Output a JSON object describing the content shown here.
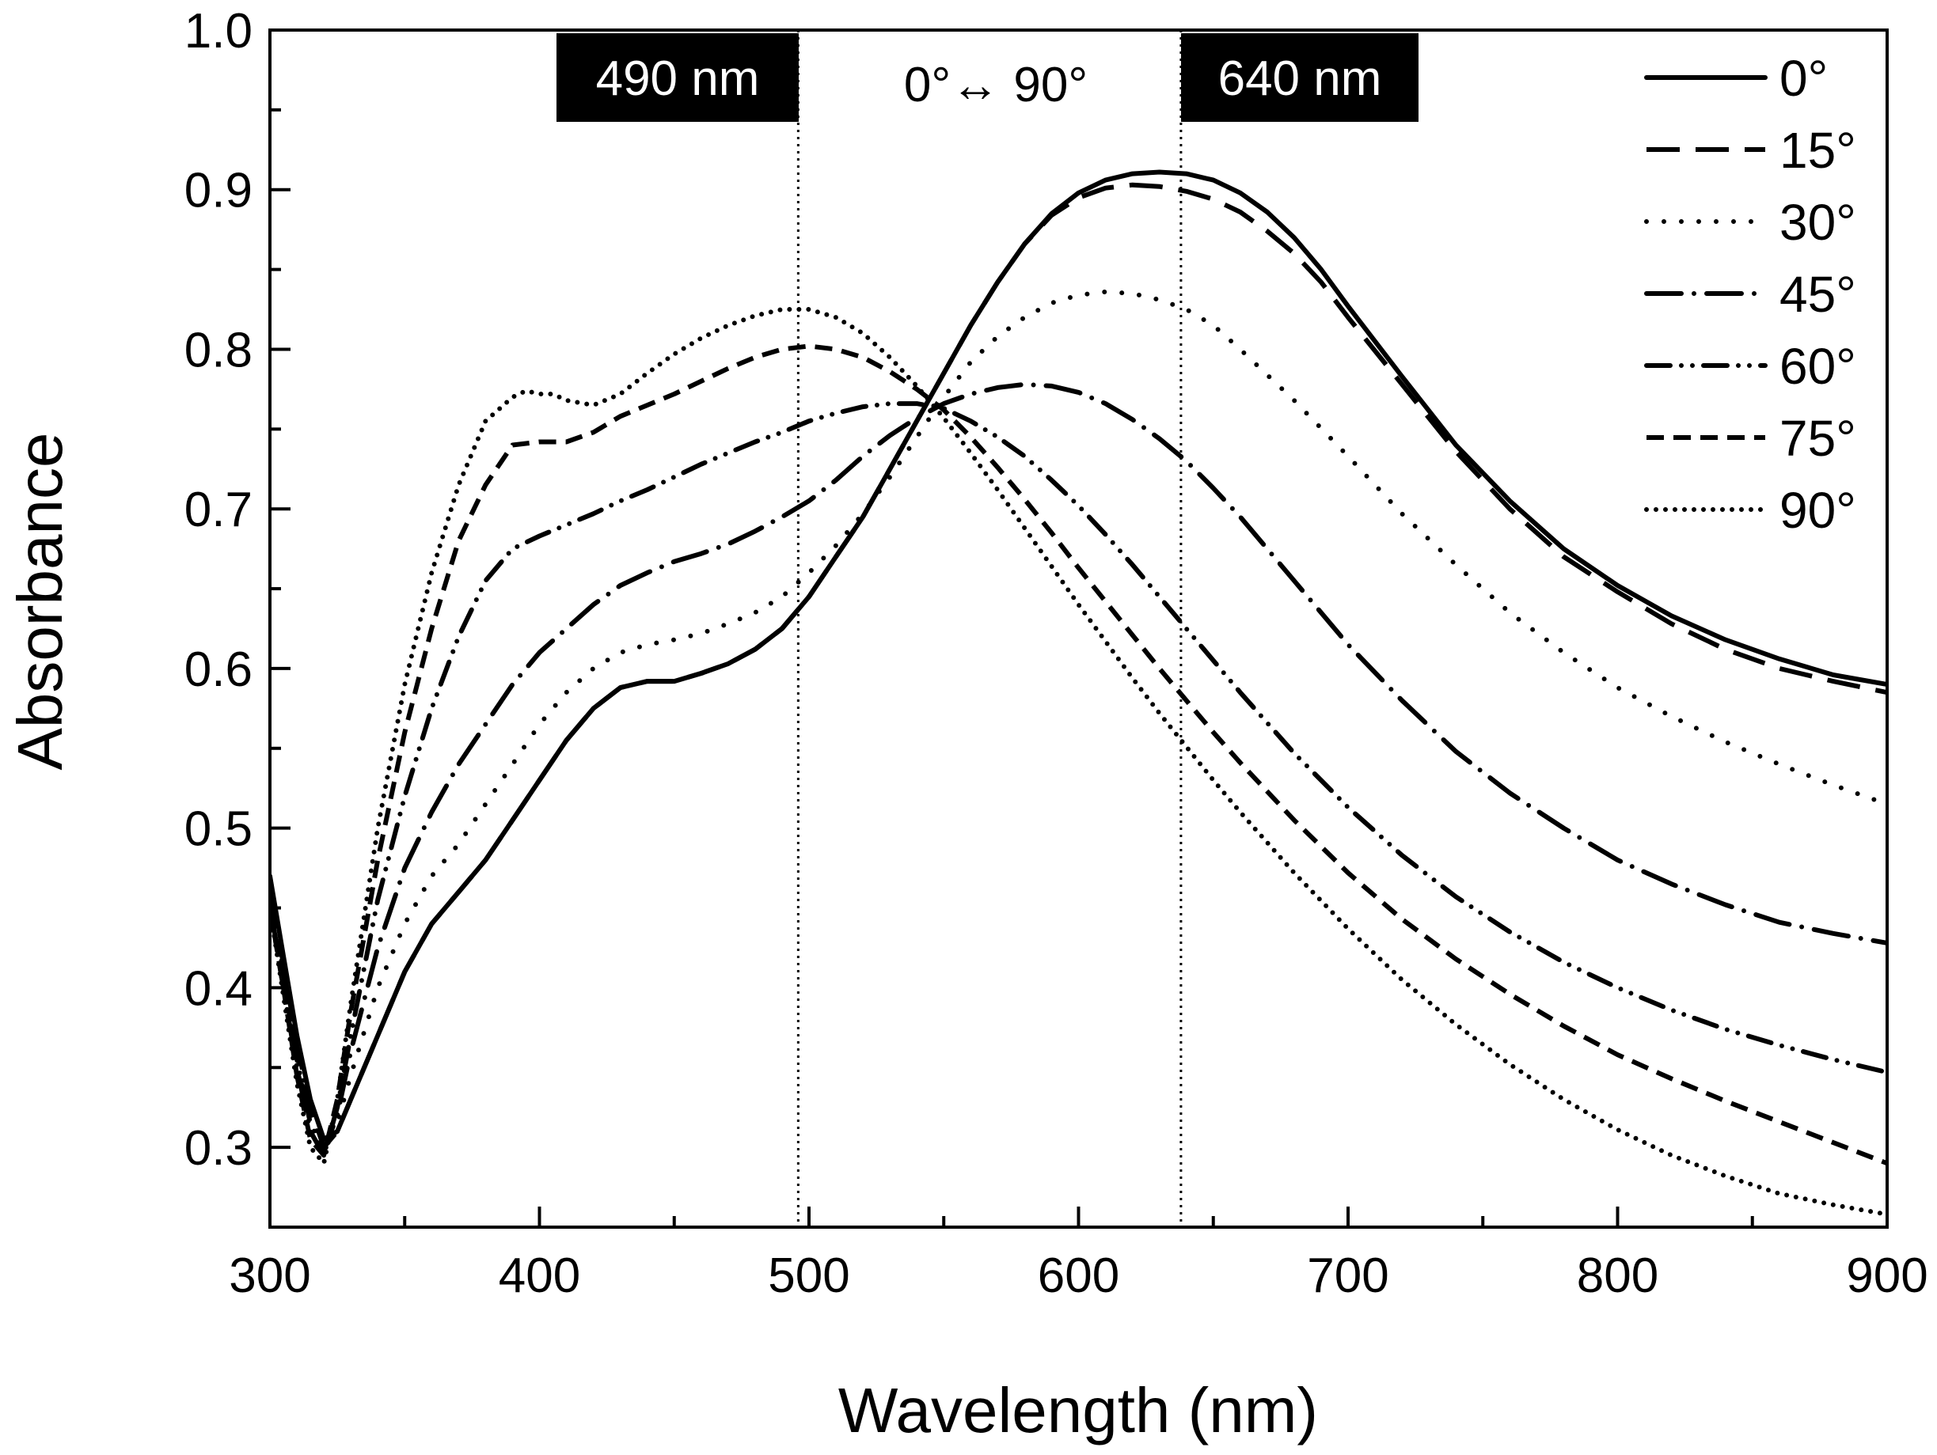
{
  "chart_data": {
    "type": "line",
    "title": "",
    "xlabel": "Wavelength (nm)",
    "ylabel": "Absorbance",
    "xlim": [
      300,
      900
    ],
    "ylim": [
      0.25,
      1.0
    ],
    "xticks": [
      300,
      400,
      500,
      600,
      700,
      800,
      900
    ],
    "xtick_labels": [
      "300",
      "400",
      "500",
      "600",
      "700",
      "800",
      "900"
    ],
    "yticks": [
      0.3,
      0.4,
      0.5,
      0.6,
      0.7,
      0.8,
      0.9,
      1.0
    ],
    "ytick_labels": [
      "0.3",
      "0.4",
      "0.5",
      "0.6",
      "0.7",
      "0.8",
      "0.9",
      "1.0"
    ],
    "grid": false,
    "legend_position": "top-right",
    "annotations": {
      "left_box": "490 nm",
      "middle": "0°↔ 90°",
      "right_box": "640 nm",
      "vlines": [
        496,
        638
      ]
    },
    "series": [
      {
        "name": "0°",
        "dash": "solid",
        "x": [
          300,
          305,
          310,
          315,
          320,
          325,
          330,
          340,
          350,
          360,
          370,
          380,
          390,
          400,
          410,
          420,
          430,
          440,
          450,
          460,
          470,
          480,
          490,
          500,
          510,
          520,
          530,
          540,
          550,
          560,
          570,
          580,
          590,
          600,
          610,
          620,
          630,
          640,
          650,
          660,
          670,
          680,
          690,
          700,
          720,
          740,
          760,
          780,
          800,
          820,
          840,
          860,
          880,
          900
        ],
        "y": [
          0.47,
          0.42,
          0.37,
          0.33,
          0.305,
          0.31,
          0.33,
          0.37,
          0.41,
          0.44,
          0.46,
          0.48,
          0.505,
          0.53,
          0.555,
          0.575,
          0.588,
          0.592,
          0.592,
          0.597,
          0.603,
          0.612,
          0.625,
          0.645,
          0.67,
          0.695,
          0.725,
          0.755,
          0.785,
          0.815,
          0.842,
          0.866,
          0.885,
          0.898,
          0.906,
          0.91,
          0.911,
          0.91,
          0.906,
          0.898,
          0.886,
          0.87,
          0.85,
          0.827,
          0.783,
          0.74,
          0.705,
          0.675,
          0.652,
          0.633,
          0.618,
          0.606,
          0.596,
          0.59
        ]
      },
      {
        "name": "15°",
        "dash": "long-dash",
        "x": [
          300,
          305,
          310,
          315,
          320,
          325,
          330,
          340,
          350,
          360,
          370,
          380,
          390,
          400,
          410,
          420,
          430,
          440,
          450,
          460,
          470,
          480,
          490,
          500,
          510,
          520,
          530,
          540,
          550,
          560,
          570,
          580,
          590,
          600,
          610,
          620,
          630,
          640,
          650,
          660,
          670,
          680,
          690,
          700,
          720,
          740,
          760,
          780,
          800,
          820,
          840,
          860,
          880,
          900
        ],
        "y": [
          0.46,
          0.415,
          0.365,
          0.325,
          0.3,
          0.31,
          0.33,
          0.37,
          0.41,
          0.44,
          0.46,
          0.48,
          0.505,
          0.53,
          0.555,
          0.575,
          0.588,
          0.592,
          0.592,
          0.597,
          0.603,
          0.612,
          0.625,
          0.645,
          0.67,
          0.695,
          0.725,
          0.755,
          0.785,
          0.815,
          0.842,
          0.866,
          0.884,
          0.895,
          0.901,
          0.903,
          0.902,
          0.899,
          0.894,
          0.886,
          0.874,
          0.86,
          0.842,
          0.82,
          0.778,
          0.736,
          0.7,
          0.67,
          0.648,
          0.628,
          0.612,
          0.6,
          0.592,
          0.585
        ]
      },
      {
        "name": "30°",
        "dash": "dot-wide",
        "x": [
          300,
          305,
          310,
          315,
          320,
          325,
          330,
          340,
          350,
          360,
          370,
          380,
          390,
          400,
          410,
          420,
          430,
          440,
          450,
          460,
          470,
          480,
          490,
          500,
          510,
          520,
          530,
          540,
          550,
          560,
          570,
          580,
          590,
          600,
          610,
          620,
          630,
          640,
          650,
          660,
          680,
          700,
          720,
          740,
          760,
          780,
          800,
          820,
          840,
          860,
          880,
          900
        ],
        "y": [
          0.46,
          0.41,
          0.36,
          0.32,
          0.3,
          0.315,
          0.345,
          0.4,
          0.44,
          0.47,
          0.49,
          0.515,
          0.54,
          0.565,
          0.585,
          0.6,
          0.61,
          0.615,
          0.618,
          0.622,
          0.628,
          0.635,
          0.645,
          0.66,
          0.677,
          0.697,
          0.72,
          0.745,
          0.77,
          0.792,
          0.808,
          0.82,
          0.829,
          0.834,
          0.836,
          0.835,
          0.831,
          0.825,
          0.815,
          0.8,
          0.768,
          0.733,
          0.697,
          0.665,
          0.635,
          0.61,
          0.588,
          0.57,
          0.554,
          0.54,
          0.527,
          0.515
        ]
      },
      {
        "name": "45°",
        "dash": "dash-dot",
        "x": [
          300,
          305,
          310,
          315,
          320,
          325,
          330,
          340,
          350,
          360,
          370,
          380,
          390,
          400,
          410,
          420,
          430,
          440,
          450,
          460,
          470,
          480,
          490,
          500,
          510,
          520,
          530,
          540,
          550,
          560,
          570,
          580,
          590,
          600,
          610,
          620,
          630,
          640,
          650,
          660,
          680,
          700,
          720,
          740,
          760,
          780,
          800,
          820,
          840,
          860,
          880,
          900
        ],
        "y": [
          0.45,
          0.405,
          0.355,
          0.315,
          0.298,
          0.32,
          0.36,
          0.425,
          0.475,
          0.51,
          0.54,
          0.565,
          0.59,
          0.61,
          0.625,
          0.64,
          0.652,
          0.66,
          0.667,
          0.672,
          0.678,
          0.686,
          0.695,
          0.705,
          0.718,
          0.733,
          0.746,
          0.757,
          0.766,
          0.772,
          0.776,
          0.778,
          0.777,
          0.773,
          0.766,
          0.756,
          0.744,
          0.73,
          0.713,
          0.695,
          0.655,
          0.615,
          0.58,
          0.548,
          0.522,
          0.5,
          0.48,
          0.465,
          0.452,
          0.441,
          0.434,
          0.428
        ]
      },
      {
        "name": "60°",
        "dash": "dash-dot-dot",
        "x": [
          300,
          305,
          310,
          315,
          320,
          325,
          330,
          340,
          350,
          360,
          370,
          380,
          390,
          400,
          410,
          420,
          430,
          440,
          450,
          460,
          470,
          480,
          490,
          500,
          510,
          520,
          530,
          540,
          550,
          560,
          570,
          580,
          590,
          600,
          610,
          620,
          630,
          640,
          650,
          660,
          680,
          700,
          720,
          740,
          760,
          780,
          800,
          820,
          840,
          860,
          880,
          900
        ],
        "y": [
          0.45,
          0.4,
          0.35,
          0.31,
          0.295,
          0.325,
          0.37,
          0.455,
          0.52,
          0.575,
          0.62,
          0.655,
          0.675,
          0.683,
          0.69,
          0.697,
          0.705,
          0.712,
          0.72,
          0.728,
          0.735,
          0.742,
          0.748,
          0.755,
          0.76,
          0.764,
          0.766,
          0.766,
          0.763,
          0.755,
          0.745,
          0.733,
          0.718,
          0.702,
          0.684,
          0.665,
          0.645,
          0.625,
          0.605,
          0.585,
          0.547,
          0.513,
          0.483,
          0.457,
          0.435,
          0.416,
          0.4,
          0.386,
          0.374,
          0.364,
          0.355,
          0.347
        ]
      },
      {
        "name": "75°",
        "dash": "short-dash",
        "x": [
          300,
          305,
          310,
          315,
          320,
          325,
          330,
          340,
          350,
          360,
          370,
          380,
          390,
          400,
          410,
          420,
          430,
          440,
          450,
          460,
          470,
          480,
          490,
          500,
          510,
          520,
          530,
          540,
          550,
          560,
          570,
          580,
          590,
          600,
          610,
          620,
          630,
          640,
          650,
          660,
          680,
          700,
          720,
          740,
          760,
          780,
          800,
          820,
          840,
          860,
          880,
          900
        ],
        "y": [
          0.45,
          0.4,
          0.345,
          0.305,
          0.295,
          0.33,
          0.385,
          0.48,
          0.56,
          0.625,
          0.68,
          0.715,
          0.74,
          0.742,
          0.742,
          0.748,
          0.758,
          0.765,
          0.772,
          0.78,
          0.788,
          0.795,
          0.8,
          0.802,
          0.8,
          0.795,
          0.786,
          0.775,
          0.762,
          0.745,
          0.726,
          0.706,
          0.685,
          0.663,
          0.642,
          0.621,
          0.6,
          0.58,
          0.56,
          0.541,
          0.505,
          0.472,
          0.443,
          0.418,
          0.396,
          0.376,
          0.358,
          0.343,
          0.329,
          0.316,
          0.303,
          0.29
        ]
      },
      {
        "name": "90°",
        "dash": "dot-dense",
        "x": [
          300,
          305,
          310,
          315,
          320,
          325,
          330,
          340,
          350,
          360,
          370,
          380,
          390,
          395,
          400,
          405,
          410,
          420,
          430,
          440,
          450,
          460,
          470,
          480,
          490,
          500,
          510,
          520,
          530,
          540,
          550,
          560,
          570,
          580,
          590,
          600,
          610,
          620,
          630,
          640,
          650,
          660,
          680,
          700,
          720,
          740,
          760,
          780,
          800,
          820,
          840,
          860,
          880,
          900
        ],
        "y": [
          0.45,
          0.395,
          0.34,
          0.3,
          0.29,
          0.33,
          0.39,
          0.5,
          0.59,
          0.66,
          0.715,
          0.755,
          0.77,
          0.774,
          0.772,
          0.772,
          0.768,
          0.765,
          0.772,
          0.785,
          0.797,
          0.807,
          0.815,
          0.821,
          0.825,
          0.825,
          0.82,
          0.81,
          0.795,
          0.777,
          0.757,
          0.735,
          0.712,
          0.688,
          0.664,
          0.64,
          0.617,
          0.594,
          0.572,
          0.551,
          0.53,
          0.51,
          0.472,
          0.437,
          0.405,
          0.377,
          0.352,
          0.33,
          0.311,
          0.295,
          0.282,
          0.271,
          0.264,
          0.258
        ]
      }
    ]
  }
}
